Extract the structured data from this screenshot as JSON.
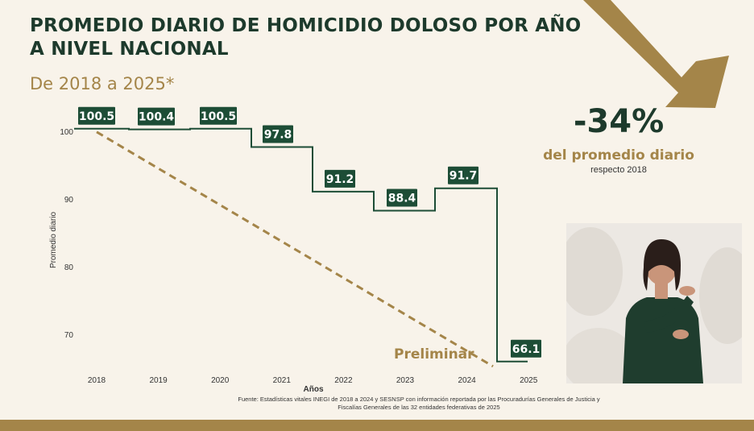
{
  "title": "PROMEDIO DIARIO DE HOMICIDIO DOLOSO POR AÑO A NIVEL NACIONAL",
  "subtitle": "De 2018 a 2025*",
  "highlight": {
    "value": "-34%",
    "description": "del promedio diario",
    "sub": "respecto 2018"
  },
  "preliminary_label": "Preliminar",
  "source": "Fuente: Estadísticas vitales INEGI de 2018 a 2024 y SESNSP con información reportada por las Procuradurías Generales de Justicia y Fiscalías Generales de las 32 entidades federativas de 2025",
  "colors": {
    "background": "#f8f3ea",
    "green": "#1d4d36",
    "gold": "#a48549"
  },
  "icons": {
    "trend_arrow": "arrow-down-right-icon"
  },
  "chart_data": {
    "type": "line",
    "title": "",
    "xlabel": "Años",
    "ylabel": "Promedio diario",
    "categories": [
      "2018",
      "2019",
      "2020",
      "2021",
      "2022",
      "2023",
      "2024",
      "2025"
    ],
    "series": [
      {
        "values": [
          100.5,
          100.4,
          100.5,
          97.8,
          91.2,
          88.4,
          91.7,
          66.1
        ],
        "labels": [
          "100.5",
          "100.4",
          "100.5",
          "97.8",
          "91.2",
          "88.4",
          "91.7",
          "66.1"
        ],
        "style": "step"
      }
    ],
    "trend": {
      "style": "dashed",
      "from": 100.5,
      "to": 66.1
    },
    "yticks": [
      70,
      80,
      90,
      100
    ],
    "ylim": [
      65,
      103
    ],
    "grid": false,
    "legend": "none"
  }
}
